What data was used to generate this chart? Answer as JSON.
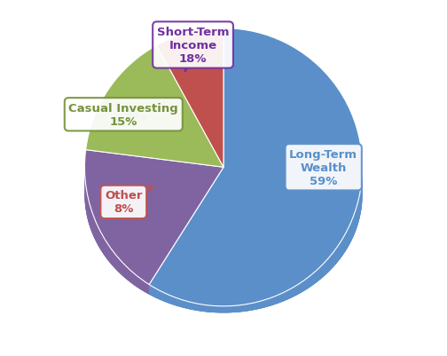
{
  "labels": [
    "Long-Term\nWealth",
    "Short-Term\nIncome",
    "Casual Investing",
    "Other"
  ],
  "values": [
    59,
    18,
    15,
    8
  ],
  "colors": [
    "#5b8fc9",
    "#8064a2",
    "#9bba59",
    "#c0504d"
  ],
  "depth_color": "#4472a8",
  "edge_color": "#ffffff",
  "background_color": "#ffffff",
  "startangle": 90,
  "label_colors": [
    "#5b8fc9",
    "#7030a0",
    "#76923c",
    "#c0504d"
  ],
  "label_texts": [
    "Long-Term\nWealth\n59%",
    "Short-Term\nIncome\n18%",
    "Casual Investing\n15%",
    "Other\n8%"
  ]
}
